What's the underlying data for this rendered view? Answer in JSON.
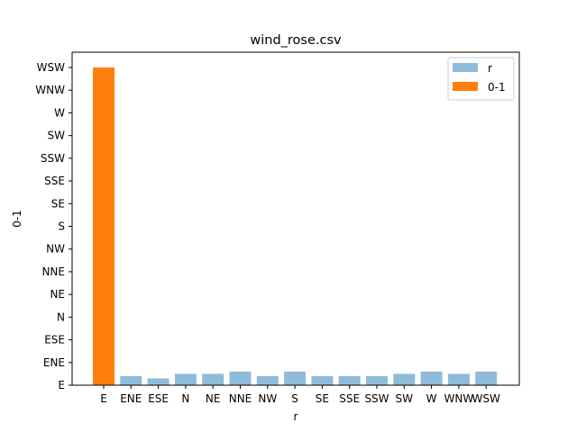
{
  "chart_data": {
    "type": "bar",
    "title": "wind_rose.csv",
    "xlabel": "r",
    "ylabel": "0-1",
    "categories": [
      "E",
      "ENE",
      "ESE",
      "N",
      "NE",
      "NNE",
      "NW",
      "S",
      "SE",
      "SSE",
      "SSW",
      "SW",
      "W",
      "WNW",
      "WSW"
    ],
    "y_tick_labels": [
      "E",
      "ENE",
      "ESE",
      "N",
      "NE",
      "NNE",
      "NW",
      "S",
      "SE",
      "SSE",
      "SSW",
      "SW",
      "W",
      "WNW",
      "WSW"
    ],
    "ylim": [
      0,
      14
    ],
    "series": [
      {
        "name": "r",
        "color": "#8fbbda",
        "values": [
          0.4,
          0.4,
          0.3,
          0.5,
          0.5,
          0.6,
          0.4,
          0.6,
          0.4,
          0.4,
          0.4,
          0.5,
          0.6,
          0.5,
          0.6
        ]
      },
      {
        "name": "0-1",
        "color": "#ff7f0e",
        "values": [
          14,
          null,
          null,
          null,
          null,
          null,
          null,
          null,
          null,
          null,
          null,
          null,
          null,
          null,
          null
        ]
      }
    ],
    "legend": "top-right",
    "grid": false
  }
}
